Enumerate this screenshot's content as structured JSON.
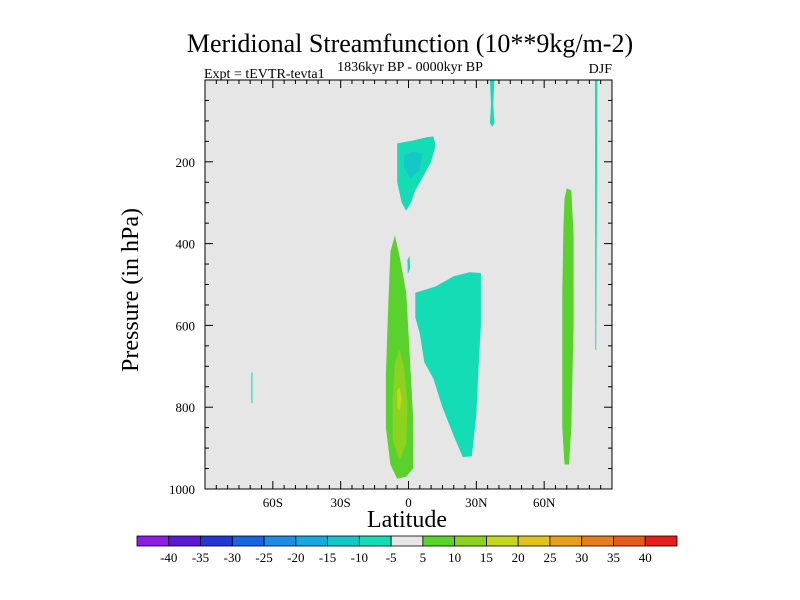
{
  "chart_data": {
    "type": "heatmap",
    "title": "Meridional Streamfunction (10**9kg/m-2)",
    "left_label": "Expt = tEVTR-tevta1",
    "center_label": "1836kyr BP - 0000kyr BP",
    "right_label": "DJF",
    "xlabel": "Latitude",
    "ylabel": "Pressure (in hPa)",
    "xlim": [
      -90,
      90
    ],
    "ylim": [
      1000,
      0
    ],
    "xticks": [
      {
        "value": -60,
        "label": "60S"
      },
      {
        "value": -30,
        "label": "30S"
      },
      {
        "value": 0,
        "label": "0"
      },
      {
        "value": 30,
        "label": "30N"
      },
      {
        "value": 60,
        "label": "60N"
      }
    ],
    "yticks": [
      {
        "value": 200,
        "label": "200"
      },
      {
        "value": 400,
        "label": "400"
      },
      {
        "value": 600,
        "label": "600"
      },
      {
        "value": 800,
        "label": "800"
      },
      {
        "value": 1000,
        "label": "1000"
      }
    ],
    "background_color": "#e6e6e6",
    "contour_levels": [
      "-40",
      "-35",
      "-30",
      "-25",
      "-20",
      "-15",
      "-10",
      "-5",
      "5",
      "10",
      "15",
      "20",
      "25",
      "30",
      "35",
      "40"
    ],
    "colorbar_colors": [
      "#8c1ee6",
      "#5a19d2",
      "#2337d2",
      "#1a64e0",
      "#1e8ce6",
      "#14aadc",
      "#14c8c8",
      "#14dcb4",
      "#e6e6e6",
      "#5ad22d",
      "#8cd21e",
      "#c3d71e",
      "#e1c31e",
      "#e6a01e",
      "#e67d1e",
      "#e65a1e",
      "#e61e1e"
    ],
    "regions": [
      {
        "level": "-10 to -5",
        "color": "#14dcb4",
        "points": [
          [
            -5,
            155
          ],
          [
            2,
            148
          ],
          [
            8,
            140
          ],
          [
            11,
            138
          ],
          [
            12,
            160
          ],
          [
            10,
            200
          ],
          [
            6,
            240
          ],
          [
            3,
            270
          ],
          [
            1,
            300
          ],
          [
            -1,
            320
          ],
          [
            -3,
            300
          ],
          [
            -5,
            250
          ],
          [
            -5,
            200
          ]
        ]
      },
      {
        "level": "-15 to -10",
        "color": "#14c8c8",
        "points": [
          [
            -2,
            185
          ],
          [
            2,
            175
          ],
          [
            6,
            180
          ],
          [
            5,
            220
          ],
          [
            1,
            240
          ],
          [
            -2,
            215
          ]
        ]
      },
      {
        "level": "-10 to -5",
        "color": "#14dcb4",
        "points": [
          [
            3,
            520
          ],
          [
            12,
            505
          ],
          [
            20,
            480
          ],
          [
            27,
            470
          ],
          [
            32,
            472
          ],
          [
            32,
            600
          ],
          [
            31,
            700
          ],
          [
            30,
            820
          ],
          [
            28,
            920
          ],
          [
            24,
            922
          ],
          [
            20,
            870
          ],
          [
            15,
            800
          ],
          [
            11,
            730
          ],
          [
            7,
            690
          ],
          [
            5,
            620
          ],
          [
            3,
            580
          ]
        ]
      },
      {
        "level": "-10 to -5",
        "color": "#14dcb4",
        "points": [
          [
            -0.5,
            440
          ],
          [
            0.5,
            430
          ],
          [
            0.7,
            460
          ],
          [
            -0.3,
            475
          ]
        ]
      },
      {
        "level": "-10 to -5",
        "color": "#14dcb4",
        "points": [
          [
            36,
            0
          ],
          [
            38,
            0
          ],
          [
            37.5,
            60
          ],
          [
            38,
            105
          ],
          [
            37,
            115
          ],
          [
            36,
            105
          ],
          [
            36.5,
            60
          ]
        ]
      },
      {
        "level": "-10 to -5",
        "color": "#14dcb4",
        "points": [
          [
            -69.5,
            715
          ],
          [
            -69,
            715
          ],
          [
            -69,
            790
          ],
          [
            -69.5,
            790
          ]
        ]
      },
      {
        "level": "-10 to -5",
        "color": "#14dcb4",
        "points": [
          [
            82.5,
            0
          ],
          [
            83.5,
            0
          ],
          [
            83.4,
            200
          ],
          [
            83,
            660
          ],
          [
            82.6,
            660
          ]
        ]
      },
      {
        "level": "5 to 10",
        "color": "#5ad22d",
        "points": [
          [
            -8,
            420
          ],
          [
            -6,
            380
          ],
          [
            -4,
            430
          ],
          [
            -1,
            520
          ],
          [
            0,
            620
          ],
          [
            1,
            720
          ],
          [
            2,
            820
          ],
          [
            2,
            950
          ],
          [
            -1,
            970
          ],
          [
            -5,
            975
          ],
          [
            -8,
            940
          ],
          [
            -10,
            850
          ],
          [
            -10,
            720
          ],
          [
            -9,
            560
          ]
        ]
      },
      {
        "level": "10 to 15",
        "color": "#8cd21e",
        "points": [
          [
            -6,
            690
          ],
          [
            -4,
            660
          ],
          [
            -2,
            700
          ],
          [
            -0.5,
            790
          ],
          [
            -1,
            890
          ],
          [
            -4,
            930
          ],
          [
            -7,
            880
          ],
          [
            -7,
            780
          ]
        ]
      },
      {
        "level": "15 to 20",
        "color": "#c3d71e",
        "points": [
          [
            -5,
            760
          ],
          [
            -4,
            750
          ],
          [
            -3,
            780
          ],
          [
            -4,
            810
          ],
          [
            -5,
            800
          ]
        ]
      },
      {
        "level": "5 to 10",
        "color": "#5ad22d",
        "points": [
          [
            70,
            265
          ],
          [
            72,
            270
          ],
          [
            73,
            380
          ],
          [
            73,
            600
          ],
          [
            72,
            850
          ],
          [
            71,
            940
          ],
          [
            69,
            940
          ],
          [
            68,
            850
          ],
          [
            68,
            520
          ],
          [
            68.5,
            360
          ],
          [
            69,
            290
          ]
        ]
      }
    ]
  }
}
